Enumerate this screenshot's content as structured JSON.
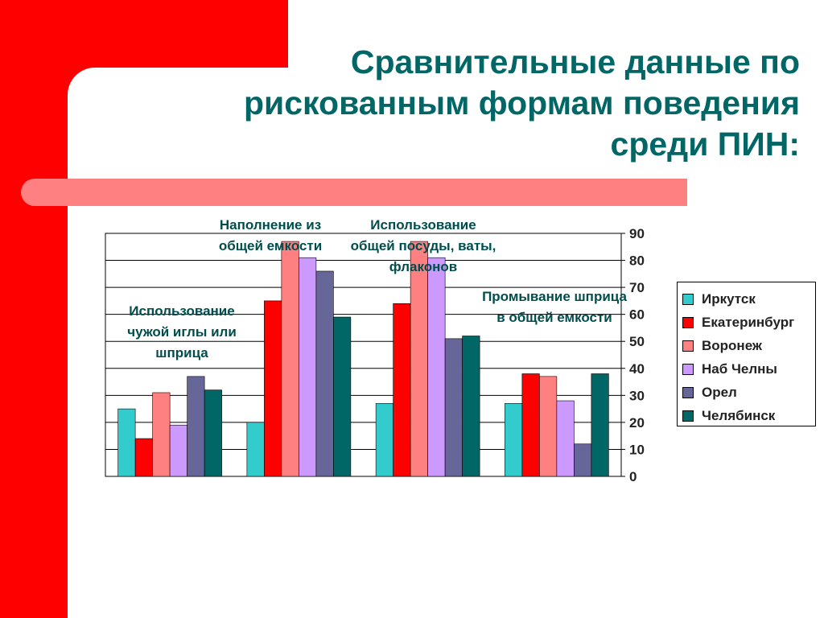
{
  "title": "Сравнительные данные по рискованным формам поведения среди ПИН:",
  "colors": {
    "background_red": "#ff0000",
    "accent_pink": "#ff8080",
    "title_teal": "#006666"
  },
  "chart_data": {
    "type": "bar",
    "categories": [
      "Использование чужой иглы или шприца",
      "Наполнение из общей емкости",
      "Использование общей посуды, ваты, флаконов",
      "Промывание шприца в общей емкости"
    ],
    "series": [
      {
        "name": "Иркутск",
        "color": "#33cccc",
        "values": [
          25,
          20,
          27,
          27
        ]
      },
      {
        "name": "Екатеринбург",
        "color": "#ff0000",
        "values": [
          14,
          65,
          64,
          38
        ]
      },
      {
        "name": "Воронеж",
        "color": "#ff8080",
        "values": [
          31,
          87,
          87,
          37
        ]
      },
      {
        "name": "Наб Челны",
        "color": "#cc99ff",
        "values": [
          19,
          81,
          81,
          28
        ]
      },
      {
        "name": "Орел",
        "color": "#666699",
        "values": [
          37,
          76,
          51,
          12
        ]
      },
      {
        "name": "Челябинск",
        "color": "#006666",
        "values": [
          32,
          59,
          52,
          38
        ]
      }
    ],
    "yticks": [
      "0",
      "10",
      "20",
      "30",
      "40",
      "50",
      "60",
      "70",
      "80",
      "90"
    ],
    "ylim": [
      0,
      90
    ],
    "grid": true,
    "legend_position": "right",
    "axis_side": "right"
  }
}
